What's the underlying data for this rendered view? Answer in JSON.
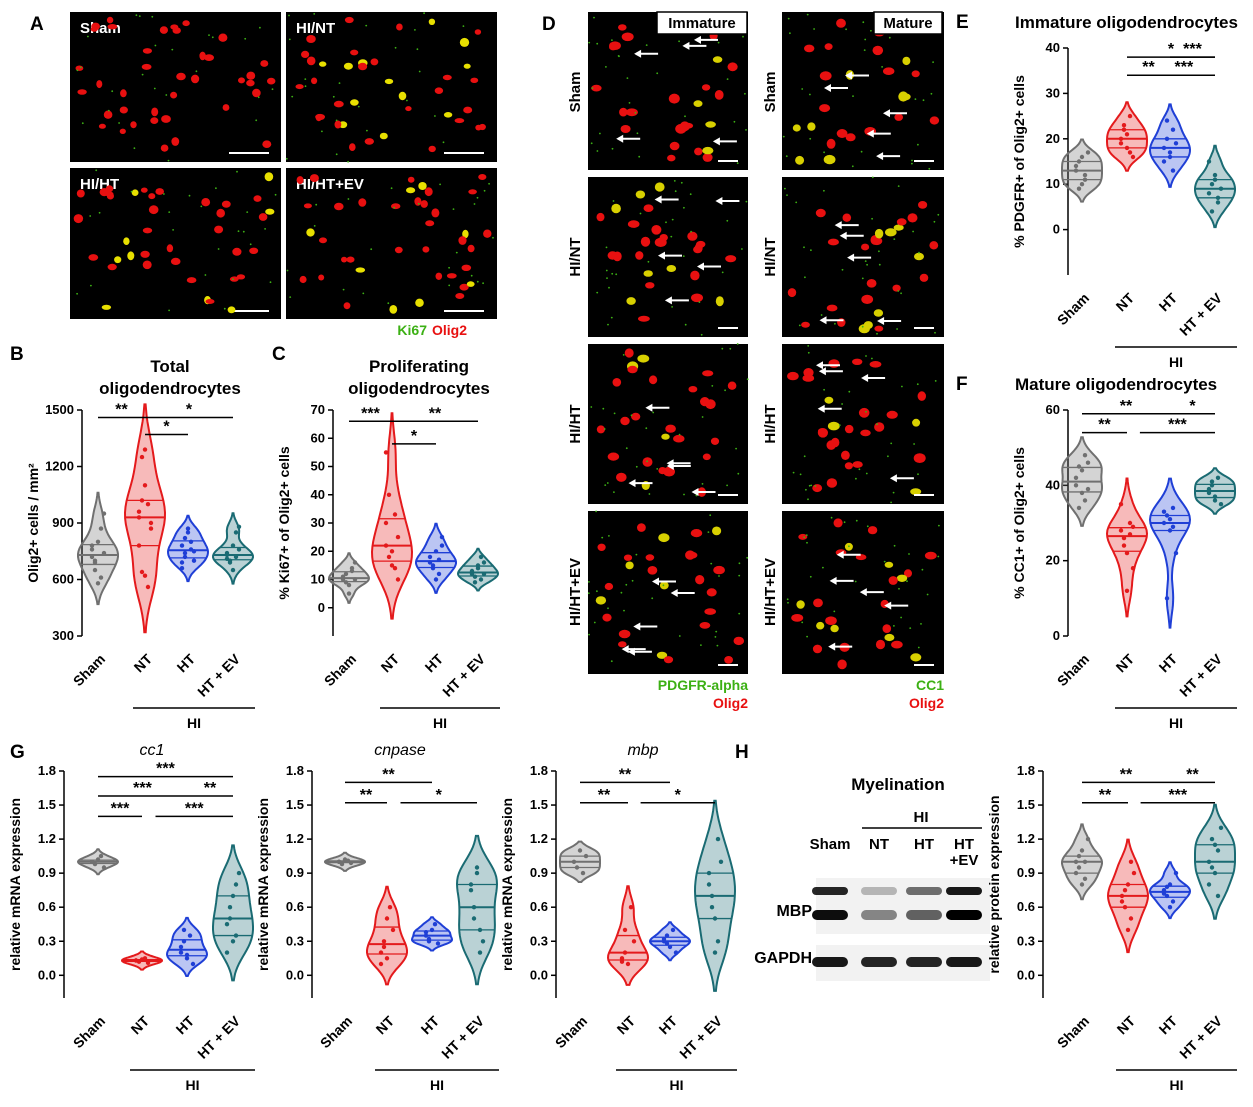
{
  "colors": {
    "sham": "#707070",
    "nt": "#e41a1c",
    "ht": "#1f3fd6",
    "htev": "#1a6b73",
    "green": "#3cb014",
    "red": "#e81010",
    "micro_bg": "#000000"
  },
  "panel_letters": {
    "A": "A",
    "B": "B",
    "C": "C",
    "D": "D",
    "E": "E",
    "F": "F",
    "G": "G",
    "H": "H"
  },
  "panelA": {
    "labels": [
      "Sham",
      "HI/NT",
      "HI/HT",
      "HI/HT+EV"
    ],
    "legend_green": "Ki67",
    "legend_red": "Olig2"
  },
  "panelD": {
    "col_titles": [
      "Immature",
      "Mature"
    ],
    "rows": [
      "Sham",
      "HI/NT",
      "HI/HT",
      "HI/HT+EV"
    ],
    "legend_left_green": "PDGFR-alpha",
    "legend_left_red": "Olig2",
    "legend_right_green": "CC1",
    "legend_right_red": "Olig2"
  },
  "panelH": {
    "title": "Myelination",
    "group": "HI",
    "lanes": [
      "Sham",
      "NT",
      "HT",
      "HT\n+EV"
    ],
    "bands": [
      "MBP",
      "GAPDH"
    ]
  },
  "hi_label": "HI",
  "chart_data": [
    {
      "id": "B",
      "type": "violin",
      "title": "Total\noligodendrocytes",
      "ylabel": "Olig2+ cells / mm²",
      "ylim": [
        300,
        1500
      ],
      "yticks": [
        300,
        600,
        900,
        1200,
        1500
      ],
      "categories": [
        "Sham",
        "NT",
        "HT",
        "HT + EV"
      ],
      "series": [
        {
          "values": [
            720,
            650,
            800,
            870,
            950,
            760,
            700,
            580,
            610,
            740,
            780,
            690
          ]
        },
        {
          "values": [
            930,
            1250,
            1100,
            1000,
            870,
            780,
            640,
            620,
            560,
            900,
            960,
            1020,
            1290
          ]
        },
        {
          "values": [
            780,
            820,
            870,
            760,
            700,
            660,
            720,
            850,
            800,
            750,
            690,
            740
          ]
        },
        {
          "values": [
            730,
            700,
            780,
            850,
            880,
            740,
            690,
            650,
            720,
            760,
            710
          ]
        }
      ],
      "brackets": [
        {
          "from": 0,
          "to": 1,
          "label": "**",
          "y": 1460
        },
        {
          "from": 1,
          "to": 3,
          "label": "*",
          "y": 1460
        },
        {
          "from": 1,
          "to": 2,
          "label": "*",
          "y": 1370
        }
      ]
    },
    {
      "id": "C",
      "type": "violin",
      "title": "Proliferating\noligodendrocytes",
      "ylabel": "% Ki67+ of Olig2+ cells",
      "ylim": [
        -10,
        70
      ],
      "yticks": [
        0,
        10,
        20,
        30,
        40,
        50,
        60,
        70
      ],
      "categories": [
        "Sham",
        "NT",
        "HT",
        "HT + EV"
      ],
      "series": [
        {
          "values": [
            10,
            12,
            8,
            14,
            16,
            11,
            9,
            5,
            13,
            10
          ]
        },
        {
          "values": [
            22,
            40,
            15,
            14,
            25,
            30,
            18,
            20,
            33,
            10,
            55
          ]
        },
        {
          "values": [
            16,
            14,
            20,
            12,
            25,
            18,
            15,
            10,
            17,
            22
          ]
        },
        {
          "values": [
            12,
            11,
            14,
            10,
            16,
            13,
            9,
            15,
            18,
            12
          ]
        }
      ],
      "brackets": [
        {
          "from": 0,
          "to": 1,
          "label": "***",
          "y": 66
        },
        {
          "from": 1,
          "to": 3,
          "label": "**",
          "y": 66
        },
        {
          "from": 1,
          "to": 2,
          "label": "*",
          "y": 58
        }
      ]
    },
    {
      "id": "E",
      "type": "violin",
      "title": "Immature oligodendrocytes",
      "ylabel": "% PDGFR+ of Olig2+ cells",
      "ylim": [
        -10,
        40
      ],
      "yticks": [
        0,
        10,
        20,
        30,
        40
      ],
      "categories": [
        "Sham",
        "NT",
        "HT",
        "HT + EV"
      ],
      "series": [
        {
          "values": [
            13,
            15,
            10,
            12,
            17,
            14,
            9,
            16,
            11
          ]
        },
        {
          "values": [
            20,
            22,
            18,
            25,
            16,
            19,
            23,
            21,
            17
          ]
        },
        {
          "values": [
            18,
            20,
            16,
            22,
            19,
            15,
            24,
            17,
            13
          ]
        },
        {
          "values": [
            8,
            10,
            12,
            6,
            9,
            15,
            4,
            11,
            7
          ]
        }
      ],
      "brackets": [
        {
          "from": 1,
          "to": 3,
          "label": "*",
          "y": 38
        },
        {
          "from": 2,
          "to": 3,
          "label": "***",
          "y": 38
        },
        {
          "from": 1,
          "to": 2,
          "label": "**",
          "y": 34
        },
        {
          "from": 1.6,
          "to": 3,
          "label": "***",
          "y": 34
        }
      ]
    },
    {
      "id": "F",
      "type": "violin",
      "title": "Mature oligodendrocytes",
      "ylabel": "% CC1+ of Olig2+ cells",
      "ylim": [
        0,
        60
      ],
      "yticks": [
        0,
        20,
        40,
        60
      ],
      "categories": [
        "Sham",
        "NT",
        "HT",
        "HT + EV"
      ],
      "series": [
        {
          "values": [
            42,
            45,
            38,
            36,
            46,
            40,
            34,
            44,
            48,
            39
          ]
        },
        {
          "values": [
            28,
            26,
            22,
            30,
            18,
            35,
            24,
            12,
            27,
            29
          ]
        },
        {
          "values": [
            30,
            32,
            28,
            34,
            22,
            33,
            10,
            31,
            29
          ]
        },
        {
          "values": [
            38,
            40,
            36,
            42,
            35,
            39,
            41,
            37
          ]
        }
      ],
      "brackets": [
        {
          "from": 0,
          "to": 2,
          "label": "**",
          "y": 59
        },
        {
          "from": 2,
          "to": 3,
          "label": "*",
          "y": 59
        },
        {
          "from": 0,
          "to": 1,
          "label": "**",
          "y": 54
        },
        {
          "from": 1.3,
          "to": 3,
          "label": "***",
          "y": 54
        }
      ]
    },
    {
      "id": "G1",
      "type": "violin",
      "gene": "cc1",
      "ylabel": "relative mRNA expression",
      "ylim": [
        -0.2,
        1.8
      ],
      "yticks": [
        0.0,
        0.3,
        0.6,
        0.9,
        1.2,
        1.5,
        1.8
      ],
      "categories": [
        "Sham",
        "NT",
        "HT",
        "HT + EV"
      ],
      "series": [
        {
          "values": [
            1.0,
            0.98,
            1.02,
            1.05,
            0.95,
            1.0
          ]
        },
        {
          "values": [
            0.13,
            0.12,
            0.14,
            0.15,
            0.11,
            0.13
          ]
        },
        {
          "values": [
            0.2,
            0.3,
            0.15,
            0.35,
            0.1,
            0.25,
            0.4,
            0.18
          ]
        },
        {
          "values": [
            0.45,
            0.6,
            0.3,
            0.8,
            0.9,
            0.2,
            0.5,
            0.7,
            0.35
          ]
        }
      ],
      "brackets": [
        {
          "from": 0,
          "to": 3,
          "label": "***",
          "y": 1.75
        },
        {
          "from": 0,
          "to": 2,
          "label": "***",
          "y": 1.58
        },
        {
          "from": 2,
          "to": 3,
          "label": "**",
          "y": 1.58
        },
        {
          "from": 0,
          "to": 1,
          "label": "***",
          "y": 1.4
        },
        {
          "from": 1.3,
          "to": 3,
          "label": "***",
          "y": 1.4
        }
      ]
    },
    {
      "id": "G2",
      "type": "violin",
      "gene": "cnpase",
      "ylabel": "relative mRNA expression",
      "ylim": [
        -0.2,
        1.8
      ],
      "yticks": [
        0.0,
        0.3,
        0.6,
        0.9,
        1.2,
        1.5,
        1.8
      ],
      "categories": [
        "Sham",
        "NT",
        "HT",
        "HT + EV"
      ],
      "series": [
        {
          "values": [
            1.0,
            0.98,
            1.02,
            1.01,
            0.99,
            1.0
          ]
        },
        {
          "values": [
            0.2,
            0.3,
            0.15,
            0.6,
            0.4,
            0.1,
            0.25,
            0.5
          ]
        },
        {
          "values": [
            0.35,
            0.3,
            0.4,
            0.45,
            0.28,
            0.38,
            0.32
          ]
        },
        {
          "values": [
            0.8,
            0.6,
            0.9,
            0.4,
            0.3,
            0.75,
            0.5,
            0.95,
            0.2
          ]
        }
      ],
      "brackets": [
        {
          "from": 0,
          "to": 2,
          "label": "**",
          "y": 1.7
        },
        {
          "from": 0,
          "to": 1,
          "label": "**",
          "y": 1.52
        },
        {
          "from": 1.3,
          "to": 3,
          "label": "*",
          "y": 1.52
        }
      ]
    },
    {
      "id": "G3",
      "type": "violin",
      "gene": "mbp",
      "ylabel": "relative mRNA expression",
      "ylim": [
        -0.2,
        1.8
      ],
      "yticks": [
        0.0,
        0.3,
        0.6,
        0.9,
        1.2,
        1.5,
        1.8
      ],
      "categories": [
        "Sham",
        "NT",
        "HT",
        "HT + EV"
      ],
      "series": [
        {
          "values": [
            1.0,
            0.95,
            1.1,
            0.9,
            1.05
          ]
        },
        {
          "values": [
            0.15,
            0.2,
            0.1,
            0.6,
            0.3,
            0.12,
            0.4
          ]
        },
        {
          "values": [
            0.3,
            0.35,
            0.25,
            0.4,
            0.2,
            0.32,
            0.28
          ]
        },
        {
          "values": [
            0.9,
            0.7,
            0.5,
            0.3,
            1.0,
            0.8,
            0.6,
            0.2,
            1.2
          ]
        }
      ],
      "brackets": [
        {
          "from": 0,
          "to": 2,
          "label": "**",
          "y": 1.7
        },
        {
          "from": 0,
          "to": 1,
          "label": "**",
          "y": 1.52
        },
        {
          "from": 1.3,
          "to": 3,
          "label": "*",
          "y": 1.52
        }
      ]
    },
    {
      "id": "H",
      "type": "violin",
      "ylabel": "relative protein expression",
      "ylim": [
        -0.2,
        1.8
      ],
      "yticks": [
        0.0,
        0.3,
        0.6,
        0.9,
        1.2,
        1.5,
        1.8
      ],
      "categories": [
        "Sham",
        "NT",
        "HT",
        "HT + EV"
      ],
      "series": [
        {
          "values": [
            1.0,
            0.95,
            1.1,
            0.85,
            1.2,
            0.9,
            1.05,
            0.8,
            1.0
          ]
        },
        {
          "values": [
            0.7,
            0.6,
            0.8,
            0.5,
            0.9,
            0.65,
            0.75,
            0.4,
            1.0
          ]
        },
        {
          "values": [
            0.75,
            0.7,
            0.8,
            0.65,
            0.9,
            0.72,
            0.78,
            0.6
          ]
        },
        {
          "values": [
            1.0,
            1.2,
            0.9,
            1.1,
            1.3,
            0.8,
            0.95,
            1.15,
            0.7
          ]
        }
      ],
      "brackets": [
        {
          "from": 0,
          "to": 2,
          "label": "**",
          "y": 1.7
        },
        {
          "from": 2,
          "to": 3,
          "label": "**",
          "y": 1.7
        },
        {
          "from": 0,
          "to": 1,
          "label": "**",
          "y": 1.52
        },
        {
          "from": 1.3,
          "to": 3,
          "label": "***",
          "y": 1.52
        }
      ]
    }
  ]
}
